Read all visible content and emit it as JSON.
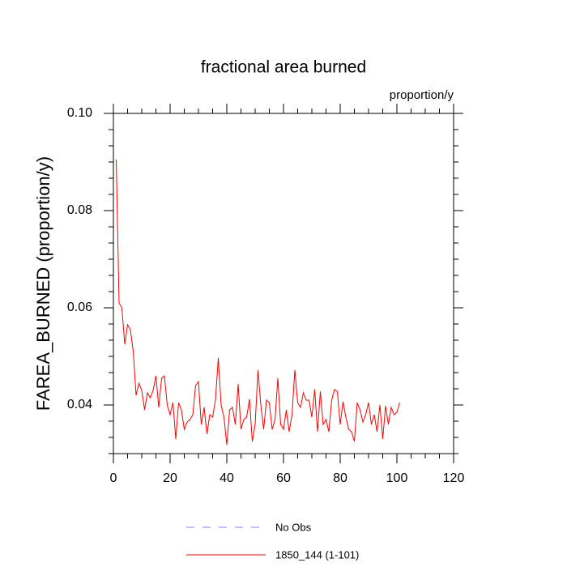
{
  "chart_data": {
    "type": "line",
    "title": "fractional area burned",
    "subtitle": "proportion/y",
    "y_label": "FAREA_BURNED  (proportion/y)",
    "xlim": [
      0,
      120
    ],
    "xticks": [
      0,
      20,
      40,
      60,
      80,
      100,
      120
    ],
    "ylim": [
      0.03,
      0.1
    ],
    "yticks": [
      0.04,
      0.06,
      0.08,
      {
        "value": 0.1,
        "label": "0.10"
      }
    ],
    "x": [
      1,
      2,
      3,
      4,
      5,
      6,
      7,
      8,
      9,
      10,
      11,
      12,
      13,
      14,
      15,
      16,
      17,
      18,
      19,
      20,
      21,
      22,
      23,
      24,
      25,
      26,
      27,
      28,
      29,
      30,
      31,
      32,
      33,
      34,
      35,
      36,
      37,
      38,
      39,
      40,
      41,
      42,
      43,
      44,
      45,
      46,
      47,
      48,
      49,
      50,
      51,
      52,
      53,
      54,
      55,
      56,
      57,
      58,
      59,
      60,
      61,
      62,
      63,
      64,
      65,
      66,
      67,
      68,
      69,
      70,
      71,
      72,
      73,
      74,
      75,
      76,
      77,
      78,
      79,
      80,
      81,
      82,
      83,
      84,
      85,
      86,
      87,
      88,
      89,
      90,
      91,
      92,
      93,
      94,
      95,
      96,
      97,
      98,
      99,
      100,
      101
    ],
    "series": [
      {
        "name": "1850_144 (1-101)",
        "color": "#ff0000",
        "values": [
          0.0905,
          0.061,
          0.06,
          0.0525,
          0.0565,
          0.0555,
          0.051,
          0.042,
          0.0445,
          0.043,
          0.039,
          0.0425,
          0.0415,
          0.043,
          0.046,
          0.0395,
          0.0455,
          0.046,
          0.04,
          0.038,
          0.0405,
          0.033,
          0.0405,
          0.039,
          0.035,
          0.0365,
          0.037,
          0.038,
          0.044,
          0.0448,
          0.036,
          0.0395,
          0.034,
          0.038,
          0.0375,
          0.041,
          0.0497,
          0.04,
          0.0375,
          0.0318,
          0.039,
          0.0395,
          0.036,
          0.0443,
          0.035,
          0.037,
          0.0375,
          0.0412,
          0.0325,
          0.036,
          0.0472,
          0.04,
          0.035,
          0.041,
          0.0405,
          0.035,
          0.037,
          0.0455,
          0.036,
          0.035,
          0.039,
          0.0345,
          0.038,
          0.0472,
          0.0405,
          0.0395,
          0.0425,
          0.041,
          0.041,
          0.0375,
          0.0432,
          0.0345,
          0.0428,
          0.036,
          0.037,
          0.0345,
          0.041,
          0.0432,
          0.0428,
          0.036,
          0.0407,
          0.0375,
          0.035,
          0.0345,
          0.0325,
          0.0405,
          0.039,
          0.0365,
          0.038,
          0.0405,
          0.036,
          0.038,
          0.0345,
          0.04,
          0.033,
          0.0398,
          0.036,
          0.0395,
          0.038,
          0.0385,
          0.0405
        ]
      }
    ],
    "legend": [
      {
        "name": "No Obs",
        "color": "#8080ff",
        "dash": true
      },
      {
        "name": "1850_144 (1-101)",
        "color": "#ff0000",
        "dash": false
      }
    ]
  }
}
